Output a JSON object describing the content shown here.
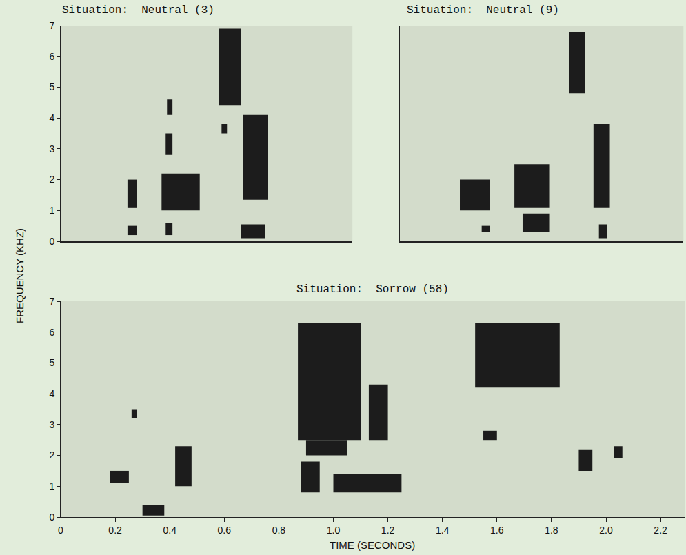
{
  "chart_data": [
    {
      "type": "spectrogram",
      "title": "Situation:  Neutral (3)",
      "ylabel": "FREQUENCY (KHZ)",
      "xlim": [
        0,
        1.07
      ],
      "ylim": [
        0,
        7
      ],
      "yticks": [
        0,
        1,
        2,
        3,
        4,
        5,
        6,
        7
      ],
      "tick_labels": "y",
      "color": "#1c1c1c",
      "patches": [
        {
          "t": [
            0.245,
            0.28
          ],
          "f": [
            1.1,
            2.0
          ]
        },
        {
          "t": [
            0.245,
            0.28
          ],
          "f": [
            0.2,
            0.5
          ]
        },
        {
          "t": [
            0.37,
            0.51
          ],
          "f": [
            1.0,
            2.2
          ]
        },
        {
          "t": [
            0.385,
            0.41
          ],
          "f": [
            0.2,
            0.6
          ]
        },
        {
          "t": [
            0.385,
            0.41
          ],
          "f": [
            2.8,
            3.5
          ]
        },
        {
          "t": [
            0.39,
            0.41
          ],
          "f": [
            4.1,
            4.6
          ]
        },
        {
          "t": [
            0.58,
            0.66
          ],
          "f": [
            4.4,
            6.9
          ]
        },
        {
          "t": [
            0.59,
            0.61
          ],
          "f": [
            3.5,
            3.8
          ]
        },
        {
          "t": [
            0.67,
            0.76
          ],
          "f": [
            1.35,
            4.1
          ]
        },
        {
          "t": [
            0.66,
            0.75
          ],
          "f": [
            0.1,
            0.55
          ]
        }
      ]
    },
    {
      "type": "spectrogram",
      "title": "Situation:  Neutral (9)",
      "xlim": [
        0,
        1.04
      ],
      "ylim": [
        0,
        7
      ],
      "tick_labels": false,
      "color": "#1c1c1c",
      "patches": [
        {
          "t": [
            0.22,
            0.33
          ],
          "f": [
            1.0,
            2.0
          ]
        },
        {
          "t": [
            0.3,
            0.33
          ],
          "f": [
            0.3,
            0.5
          ]
        },
        {
          "t": [
            0.42,
            0.55
          ],
          "f": [
            1.1,
            2.5
          ]
        },
        {
          "t": [
            0.45,
            0.55
          ],
          "f": [
            0.3,
            0.9
          ]
        },
        {
          "t": [
            0.62,
            0.68
          ],
          "f": [
            4.8,
            6.8
          ]
        },
        {
          "t": [
            0.71,
            0.77
          ],
          "f": [
            1.1,
            3.8
          ]
        },
        {
          "t": [
            0.73,
            0.76
          ],
          "f": [
            0.1,
            0.55
          ]
        }
      ]
    },
    {
      "type": "spectrogram",
      "title": "Situation:  Sorrow (58)",
      "xlabel": "TIME (SECONDS)",
      "xlim": [
        0,
        2.29
      ],
      "ylim": [
        0,
        7
      ],
      "xticks": [
        0,
        0.2,
        0.4,
        0.6,
        0.8,
        {
          "value": 1,
          "label": "1.0"
        },
        1.2,
        1.4,
        1.6,
        1.8,
        {
          "value": 2,
          "label": "2.0"
        },
        2.2
      ],
      "yticks": [
        0,
        1,
        2,
        3,
        4,
        5,
        6,
        7
      ],
      "tick_labels": true,
      "color": "#1c1c1c",
      "patches": [
        {
          "t": [
            0.18,
            0.25
          ],
          "f": [
            1.1,
            1.5
          ]
        },
        {
          "t": [
            0.26,
            0.28
          ],
          "f": [
            3.2,
            3.5
          ]
        },
        {
          "t": [
            0.3,
            0.38
          ],
          "f": [
            0.05,
            0.4
          ]
        },
        {
          "t": [
            0.42,
            0.48
          ],
          "f": [
            1.0,
            2.3
          ]
        },
        {
          "t": [
            0.87,
            1.1
          ],
          "f": [
            2.5,
            6.3
          ]
        },
        {
          "t": [
            0.93,
            1.1
          ],
          "f": [
            4.5,
            5.8
          ]
        },
        {
          "t": [
            0.88,
            0.95
          ],
          "f": [
            0.8,
            1.8
          ]
        },
        {
          "t": [
            1.0,
            1.25
          ],
          "f": [
            0.8,
            1.4
          ]
        },
        {
          "t": [
            0.9,
            1.05
          ],
          "f": [
            2.0,
            2.5
          ]
        },
        {
          "t": [
            1.13,
            1.2
          ],
          "f": [
            2.5,
            4.3
          ]
        },
        {
          "t": [
            1.52,
            1.83
          ],
          "f": [
            4.2,
            6.3
          ]
        },
        {
          "t": [
            1.55,
            1.6
          ],
          "f": [
            2.5,
            2.8
          ]
        },
        {
          "t": [
            1.9,
            1.95
          ],
          "f": [
            1.5,
            2.2
          ]
        },
        {
          "t": [
            2.03,
            2.06
          ],
          "f": [
            1.9,
            2.3
          ]
        }
      ]
    }
  ]
}
